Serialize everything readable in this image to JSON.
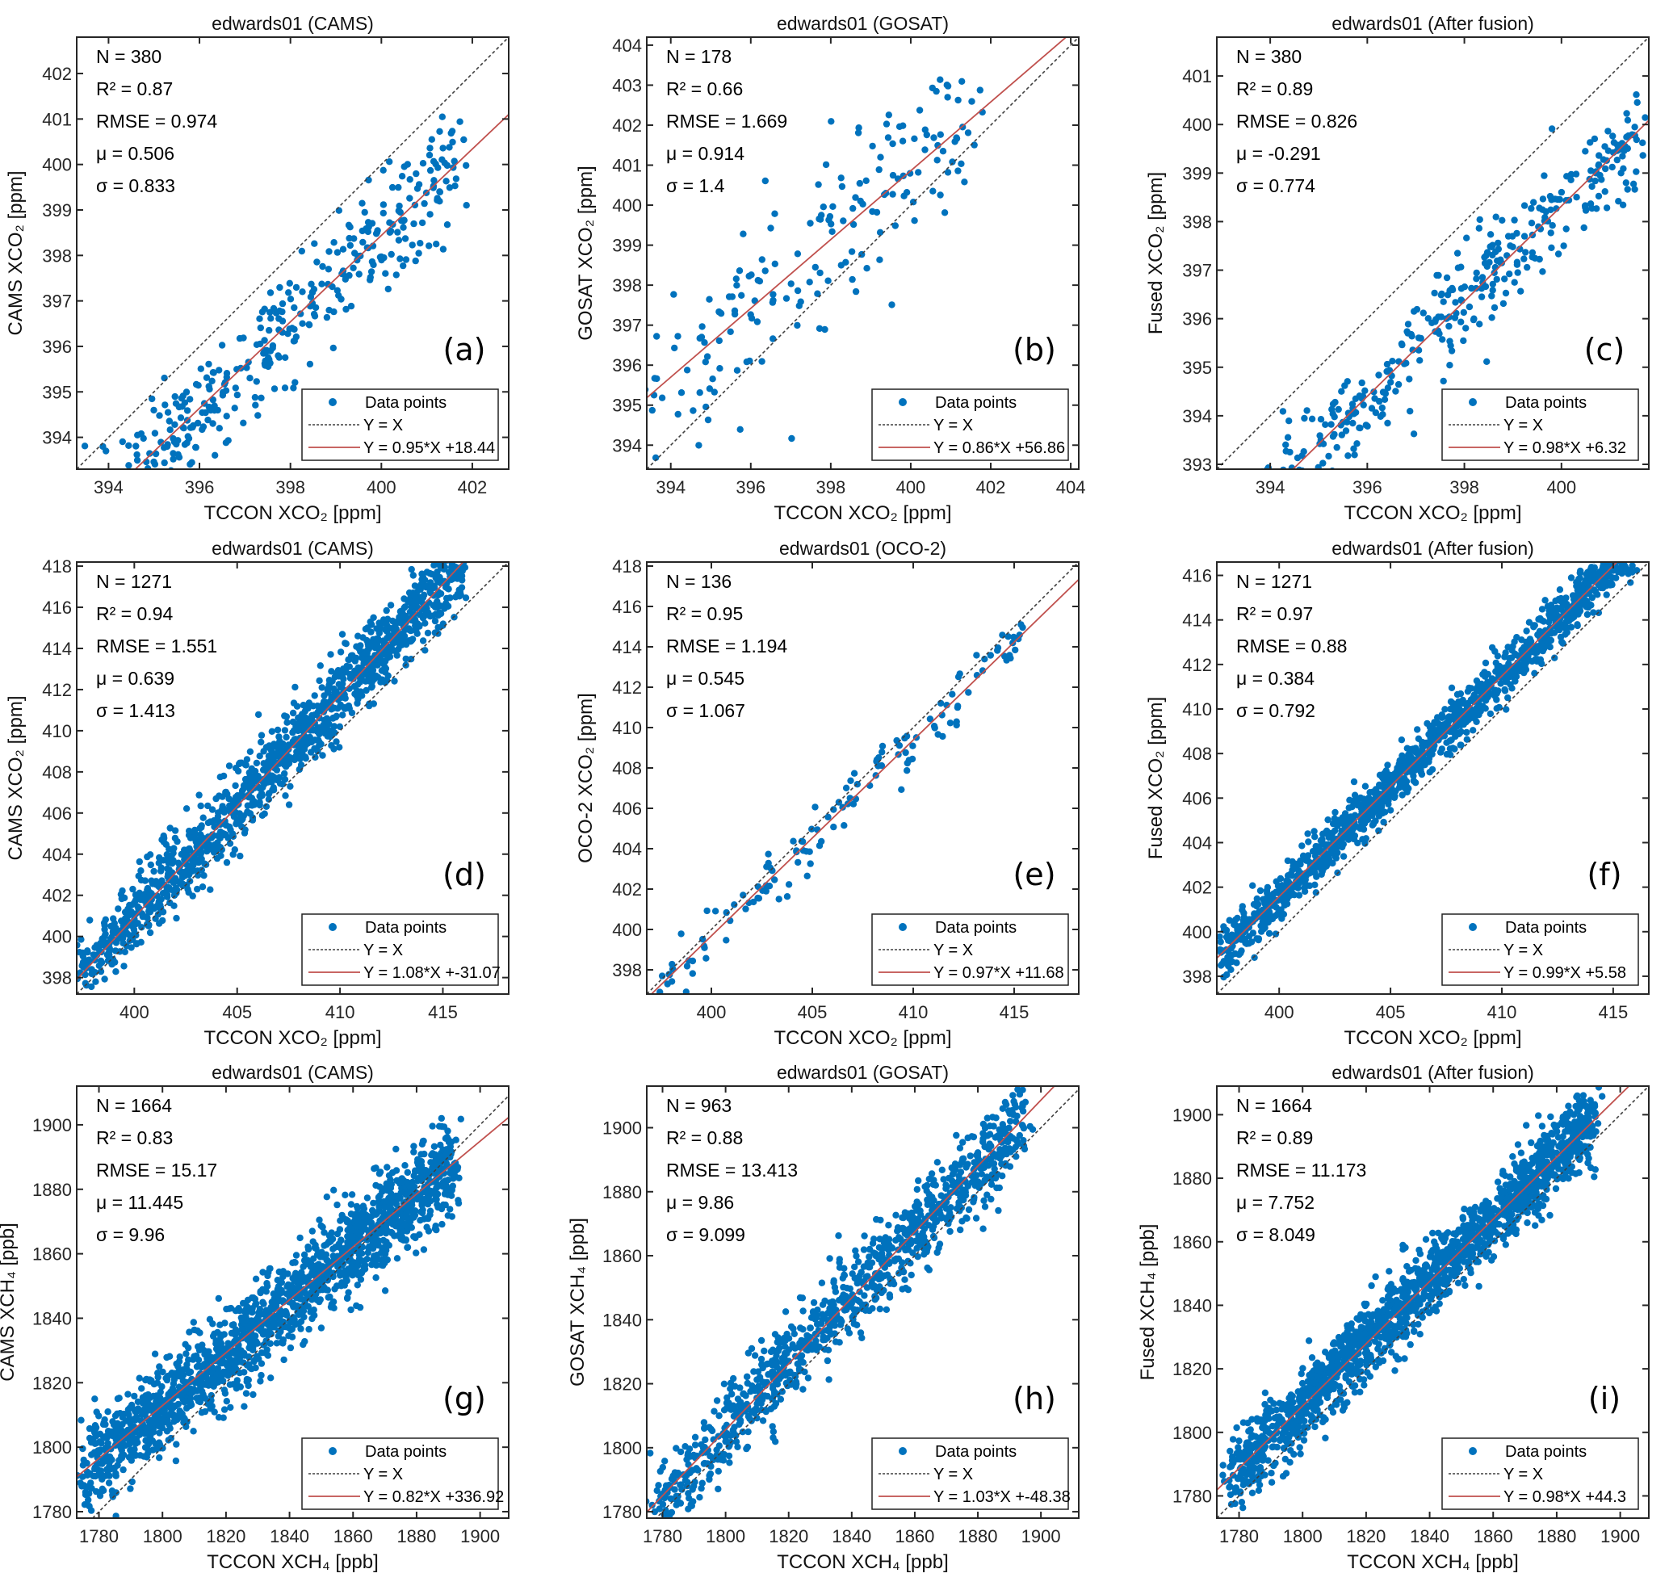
{
  "chart_data": [
    {
      "id": "a",
      "type": "scatter",
      "title": "edwards01 (CAMS)",
      "xlabel": "TCCON XCO₂ [ppm]",
      "ylabel": "CAMS XCO₂ [ppm]",
      "letter": "(a)",
      "xlim": [
        393.3,
        402.8
      ],
      "ylim": [
        393.3,
        402.8
      ],
      "xticks": [
        394,
        396,
        398,
        400,
        402
      ],
      "yticks": [
        394,
        395,
        396,
        397,
        398,
        399,
        400,
        401,
        402
      ],
      "stats": [
        "N = 380",
        "R² = 0.87",
        "RMSE = 0.974",
        "μ = 0.506",
        "σ = 0.833"
      ],
      "n": 380,
      "slope": 0.95,
      "intercept": 18.44,
      "scatter_sd": 0.8,
      "x_extent": [
        393.3,
        401.7
      ],
      "legend": [
        "Data points",
        "Y = X",
        "Y = 0.95*X +18.44"
      ]
    },
    {
      "id": "b",
      "type": "scatter",
      "title": "edwards01 (GOSAT)",
      "xlabel": "TCCON XCO₂ [ppm]",
      "ylabel": "GOSAT XCO₂ [ppm]",
      "letter": "(b)",
      "xlim": [
        393.4,
        404.2
      ],
      "ylim": [
        393.4,
        404.2
      ],
      "xticks": [
        394,
        396,
        398,
        400,
        402,
        404
      ],
      "yticks": [
        394,
        395,
        396,
        397,
        398,
        399,
        400,
        401,
        402,
        403,
        404
      ],
      "stats": [
        "N = 178",
        "R² = 0.66",
        "RMSE = 1.669",
        "μ = 0.914",
        "σ = 1.4"
      ],
      "n": 178,
      "slope": 0.86,
      "intercept": 56.86,
      "scatter_sd": 1.3,
      "x_extent": [
        393.5,
        401.6
      ],
      "legend": [
        "Data points",
        "Y = X",
        "Y = 0.86*X +56.86"
      ]
    },
    {
      "id": "c",
      "type": "scatter",
      "title": "edwards01 (After fusion)",
      "xlabel": "TCCON XCO₂ [ppm]",
      "ylabel": "Fused XCO₂ [ppm]",
      "letter": "(c)",
      "xlim": [
        392.9,
        401.8
      ],
      "ylim": [
        392.9,
        401.8
      ],
      "xticks": [
        394,
        396,
        398,
        400
      ],
      "yticks": [
        393,
        394,
        395,
        396,
        397,
        398,
        399,
        400,
        401
      ],
      "stats": [
        "N = 380",
        "R² = 0.89",
        "RMSE = 0.826",
        "μ = -0.291",
        "σ = 0.774"
      ],
      "n": 380,
      "slope": 0.98,
      "intercept": 6.32,
      "scatter_sd": 0.72,
      "x_extent": [
        393,
        401.7
      ],
      "legend": [
        "Data points",
        "Y = X",
        "Y = 0.98*X +6.32"
      ]
    },
    {
      "id": "d",
      "type": "scatter",
      "title": "edwards01 (CAMS)",
      "xlabel": "TCCON XCO₂ [ppm]",
      "ylabel": "CAMS XCO₂ [ppm]",
      "letter": "(d)",
      "xlim": [
        397.2,
        418.2
      ],
      "ylim": [
        397.2,
        418.2
      ],
      "xticks": [
        400,
        405,
        410,
        415
      ],
      "yticks": [
        398,
        400,
        402,
        404,
        406,
        408,
        410,
        412,
        414,
        416,
        418
      ],
      "stats": [
        "N = 1271",
        "R² = 0.94",
        "RMSE = 1.551",
        "μ = 0.639",
        "σ = 1.413"
      ],
      "n": 1271,
      "slope": 1.08,
      "intercept": -31.07,
      "scatter_sd": 1.2,
      "x_extent": [
        397.2,
        416
      ],
      "legend": [
        "Data points",
        "Y = X",
        "Y = 1.08*X +-31.07"
      ]
    },
    {
      "id": "e",
      "type": "scatter",
      "title": "edwards01 (OCO-2)",
      "xlabel": "TCCON XCO₂ [ppm]",
      "ylabel": "OCO-2 XCO₂ [ppm]",
      "letter": "(e)",
      "xlim": [
        396.8,
        418.2
      ],
      "ylim": [
        396.8,
        418.2
      ],
      "xticks": [
        400,
        405,
        410,
        415
      ],
      "yticks": [
        398,
        400,
        402,
        404,
        406,
        408,
        410,
        412,
        414,
        416,
        418
      ],
      "stats": [
        "N = 136",
        "R² = 0.95",
        "RMSE = 1.194",
        "μ = 0.545",
        "σ = 1.067"
      ],
      "n": 136,
      "slope": 0.97,
      "intercept": 11.68,
      "scatter_sd": 0.9,
      "x_extent": [
        397.2,
        415.5
      ],
      "legend": [
        "Data points",
        "Y = X",
        "Y = 0.97*X +11.68"
      ]
    },
    {
      "id": "f",
      "type": "scatter",
      "title": "edwards01 (After fusion)",
      "xlabel": "TCCON XCO₂ [ppm]",
      "ylabel": "Fused XCO₂ [ppm]",
      "letter": "(f)",
      "xlim": [
        397.2,
        416.6
      ],
      "ylim": [
        397.2,
        416.6
      ],
      "xticks": [
        400,
        405,
        410,
        415
      ],
      "yticks": [
        398,
        400,
        402,
        404,
        406,
        408,
        410,
        412,
        414,
        416
      ],
      "stats": [
        "N = 1271",
        "R² = 0.97",
        "RMSE = 0.88",
        "μ = 0.384",
        "σ = 0.792"
      ],
      "n": 1271,
      "slope": 0.99,
      "intercept": 5.58,
      "scatter_sd": 0.75,
      "x_extent": [
        397.2,
        416
      ],
      "legend": [
        "Data points",
        "Y = X",
        "Y = 0.99*X +5.58"
      ]
    },
    {
      "id": "g",
      "type": "scatter",
      "title": "edwards01 (CAMS)",
      "xlabel": "TCCON XCH₄ [ppb]",
      "ylabel": "CAMS XCH₄ [ppb]",
      "letter": "(g)",
      "xlim": [
        1773,
        1909
      ],
      "ylim": [
        1778,
        1912
      ],
      "xticks": [
        1780,
        1800,
        1820,
        1840,
        1860,
        1880,
        1900
      ],
      "yticks": [
        1780,
        1800,
        1820,
        1840,
        1860,
        1880,
        1900
      ],
      "stats": [
        "N = 1664",
        "R² = 0.83",
        "RMSE = 15.17",
        "μ = 11.445",
        "σ = 9.96"
      ],
      "n": 1664,
      "slope": 0.82,
      "intercept": 336.92,
      "scatter_sd": 9.5,
      "x_extent": [
        1775,
        1892
      ],
      "legend": [
        "Data points",
        "Y = X",
        "Y = 0.82*X +336.92"
      ]
    },
    {
      "id": "h",
      "type": "scatter",
      "title": "edwards01 (GOSAT)",
      "xlabel": "TCCON XCH₄ [ppb]",
      "ylabel": "GOSAT XCH₄ [ppb]",
      "letter": "(h)",
      "xlim": [
        1775,
        1912
      ],
      "ylim": [
        1778,
        1913
      ],
      "xticks": [
        1780,
        1800,
        1820,
        1840,
        1860,
        1880,
        1900
      ],
      "yticks": [
        1780,
        1800,
        1820,
        1840,
        1860,
        1880,
        1900
      ],
      "stats": [
        "N = 963",
        "R² = 0.88",
        "RMSE = 13.413",
        "μ = 9.86",
        "σ = 9.099"
      ],
      "n": 963,
      "slope": 1.03,
      "intercept": -48.38,
      "scatter_sd": 8.8,
      "x_extent": [
        1777,
        1895
      ],
      "legend": [
        "Data points",
        "Y = X",
        "Y = 1.03*X +-48.38"
      ]
    },
    {
      "id": "i",
      "type": "scatter",
      "title": "edwards01 (After fusion)",
      "xlabel": "TCCON XCH₄ [ppb]",
      "ylabel": "Fused XCH₄ [ppb]",
      "letter": "(i)",
      "xlim": [
        1773,
        1909
      ],
      "ylim": [
        1773,
        1909
      ],
      "xticks": [
        1780,
        1800,
        1820,
        1840,
        1860,
        1880,
        1900
      ],
      "yticks": [
        1780,
        1800,
        1820,
        1840,
        1860,
        1880,
        1900
      ],
      "stats": [
        "N = 1664",
        "R² = 0.89",
        "RMSE = 11.173",
        "μ = 7.752",
        "σ = 8.049"
      ],
      "n": 1664,
      "slope": 0.98,
      "intercept": 44.3,
      "scatter_sd": 7.8,
      "x_extent": [
        1777,
        1892
      ],
      "legend": [
        "Data points",
        "Y = X",
        "Y = 0.98*X +44.3"
      ]
    }
  ],
  "colors": {
    "points": "#0072BD",
    "fit": "#C0504D",
    "identity": "#404040",
    "axis": "#262626"
  }
}
